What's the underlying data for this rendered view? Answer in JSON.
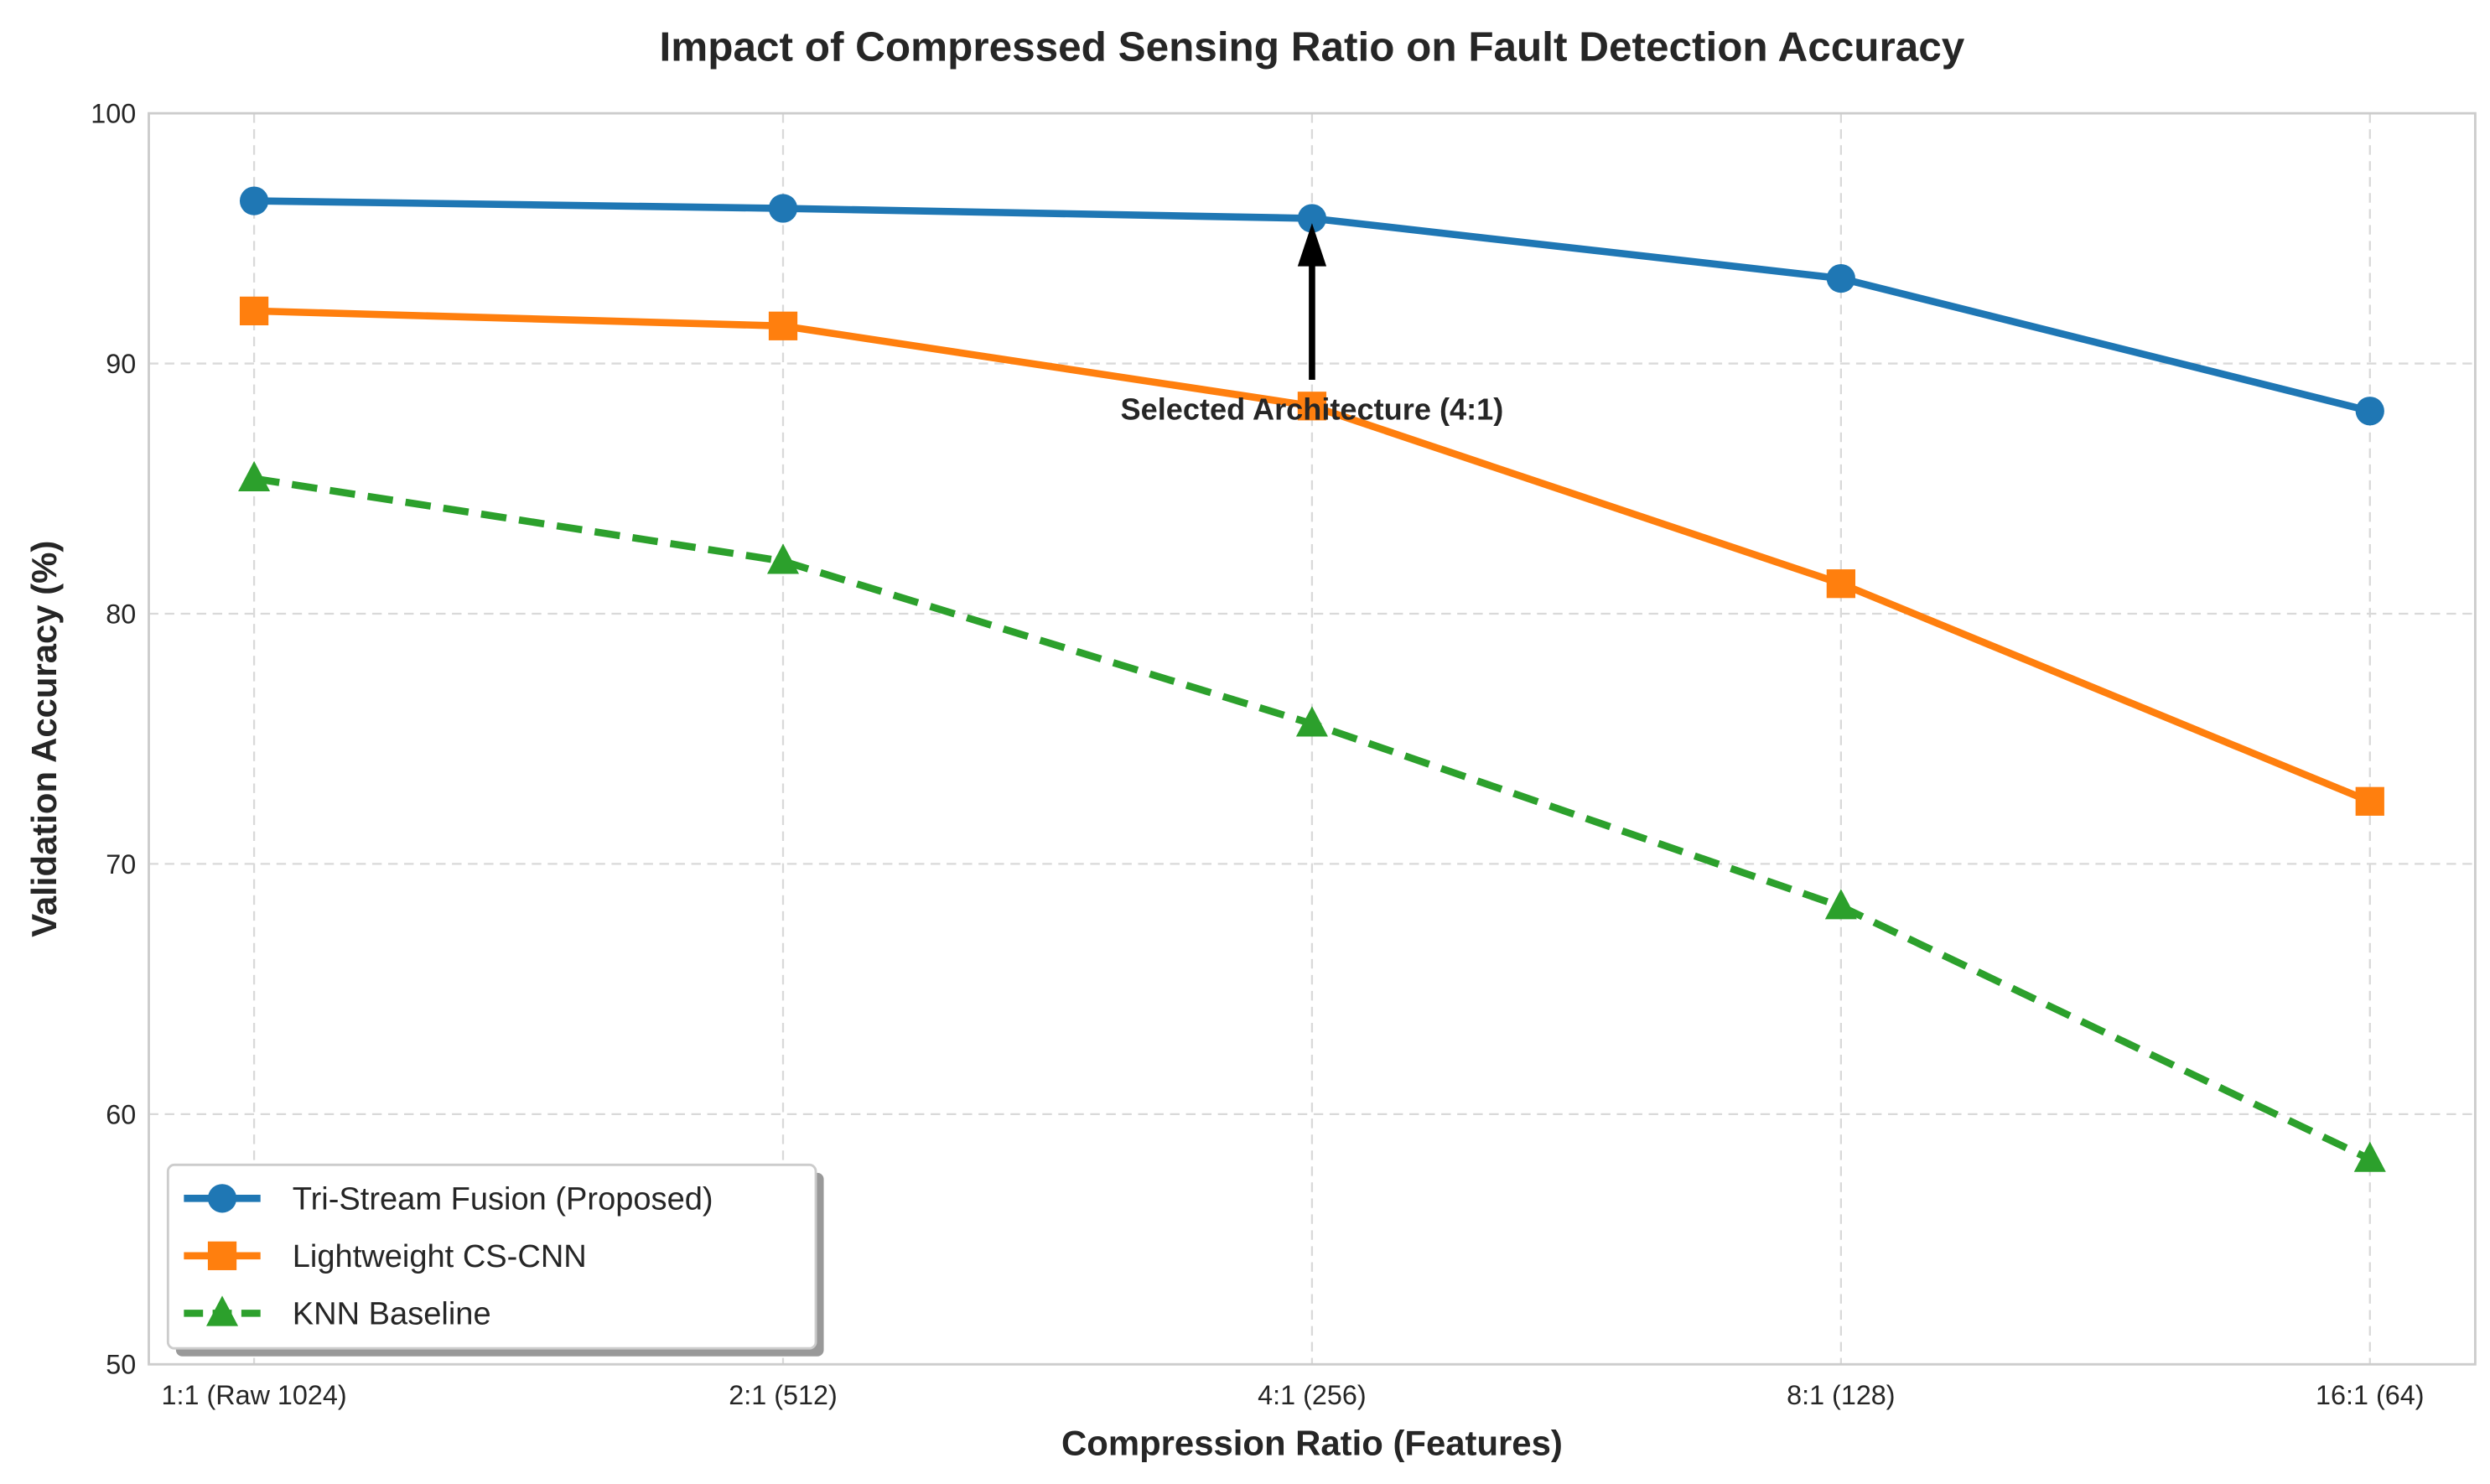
{
  "chart_data": {
    "type": "line",
    "title": "Impact of Compressed Sensing Ratio on Fault Detection Accuracy",
    "xlabel": "Compression Ratio (Features)",
    "ylabel": "Validation Accuracy (%)",
    "categories": [
      "1:1 (Raw 1024)",
      "2:1 (512)",
      "4:1 (256)",
      "8:1 (128)",
      "16:1 (64)"
    ],
    "ylim": [
      50,
      100
    ],
    "yticks": [
      50,
      60,
      70,
      80,
      90,
      100
    ],
    "grid": true,
    "legend_position": "lower-left",
    "series": [
      {
        "name": "Tri-Stream Fusion (Proposed)",
        "values": [
          96.5,
          96.2,
          95.8,
          93.4,
          88.1
        ],
        "color": "#1f77b4",
        "marker": "circle",
        "linestyle": "solid"
      },
      {
        "name": "Lightweight CS-CNN",
        "values": [
          92.1,
          91.5,
          88.3,
          81.2,
          72.5
        ],
        "color": "#ff7f0e",
        "marker": "square",
        "linestyle": "solid"
      },
      {
        "name": "KNN Baseline",
        "values": [
          85.4,
          82.1,
          75.6,
          68.3,
          58.2
        ],
        "color": "#2ca02c",
        "marker": "triangle",
        "linestyle": "dashed"
      }
    ],
    "annotation": {
      "text": "Selected Architecture (4:1)",
      "category_index": 2,
      "series_index": 0
    }
  }
}
